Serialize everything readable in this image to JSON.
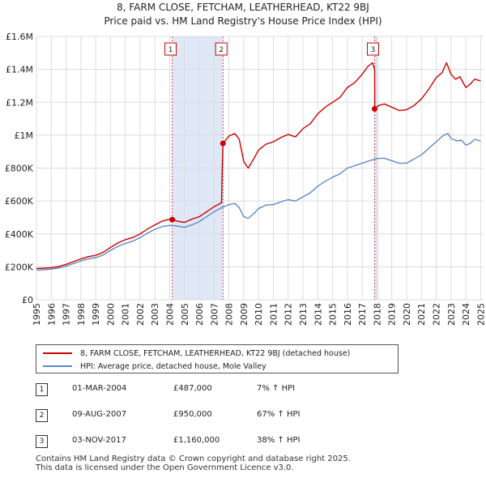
{
  "chart_data": {
    "type": "line",
    "title": "8, FARM CLOSE, FETCHAM, LEATHERHEAD, KT22 9BJ",
    "subtitle": "Price paid vs. HM Land Registry's House Price Index (HPI)",
    "xlim": [
      1995,
      2025.2
    ],
    "ylim": [
      0,
      1600000
    ],
    "x_ticks": [
      1995,
      1996,
      1997,
      1998,
      1999,
      2000,
      2001,
      2002,
      2003,
      2004,
      2005,
      2006,
      2007,
      2008,
      2009,
      2010,
      2011,
      2012,
      2013,
      2014,
      2015,
      2016,
      2017,
      2018,
      2019,
      2020,
      2021,
      2022,
      2023,
      2024,
      2025
    ],
    "y_ticks": [
      {
        "value": 0,
        "label": "£0"
      },
      {
        "value": 200000,
        "label": "£200K"
      },
      {
        "value": 400000,
        "label": "£400K"
      },
      {
        "value": 600000,
        "label": "£600K"
      },
      {
        "value": 800000,
        "label": "£800K"
      },
      {
        "value": 1000000,
        "label": "£1M"
      },
      {
        "value": 1200000,
        "label": "£1.2M"
      },
      {
        "value": 1400000,
        "label": "£1.4M"
      },
      {
        "value": 1600000,
        "label": "£1.6M"
      }
    ],
    "series": [
      {
        "name": "8, FARM CLOSE, FETCHAM, LEATHERHEAD, KT22 9BJ (detached house)",
        "color": "#cc0000",
        "points": [
          [
            1995.0,
            190000
          ],
          [
            1995.5,
            192000
          ],
          [
            1996.0,
            195000
          ],
          [
            1996.5,
            202000
          ],
          [
            1997.0,
            215000
          ],
          [
            1997.5,
            232000
          ],
          [
            1998.0,
            248000
          ],
          [
            1998.5,
            262000
          ],
          [
            1999.0,
            270000
          ],
          [
            1999.5,
            288000
          ],
          [
            2000.0,
            318000
          ],
          [
            2000.5,
            345000
          ],
          [
            2001.0,
            365000
          ],
          [
            2001.5,
            378000
          ],
          [
            2002.0,
            400000
          ],
          [
            2002.5,
            430000
          ],
          [
            2003.0,
            455000
          ],
          [
            2003.5,
            478000
          ],
          [
            2003.9,
            487000
          ],
          [
            2004.17,
            487000
          ],
          [
            2004.5,
            478000
          ],
          [
            2005.0,
            470000
          ],
          [
            2005.5,
            490000
          ],
          [
            2006.0,
            505000
          ],
          [
            2006.5,
            535000
          ],
          [
            2007.0,
            565000
          ],
          [
            2007.5,
            590000
          ],
          [
            2007.55,
            800000
          ],
          [
            2007.6,
            950000
          ],
          [
            2008.0,
            995000
          ],
          [
            2008.4,
            1010000
          ],
          [
            2008.7,
            975000
          ],
          [
            2009.0,
            840000
          ],
          [
            2009.3,
            800000
          ],
          [
            2009.7,
            860000
          ],
          [
            2010.0,
            910000
          ],
          [
            2010.5,
            945000
          ],
          [
            2011.0,
            960000
          ],
          [
            2011.5,
            985000
          ],
          [
            2012.0,
            1005000
          ],
          [
            2012.5,
            990000
          ],
          [
            2013.0,
            1040000
          ],
          [
            2013.5,
            1070000
          ],
          [
            2014.0,
            1130000
          ],
          [
            2014.5,
            1170000
          ],
          [
            2015.0,
            1200000
          ],
          [
            2015.5,
            1230000
          ],
          [
            2016.0,
            1290000
          ],
          [
            2016.5,
            1320000
          ],
          [
            2017.0,
            1370000
          ],
          [
            2017.4,
            1420000
          ],
          [
            2017.7,
            1440000
          ],
          [
            2017.84,
            1400000
          ],
          [
            2017.85,
            1160000
          ],
          [
            2018.1,
            1180000
          ],
          [
            2018.5,
            1190000
          ],
          [
            2019.0,
            1170000
          ],
          [
            2019.5,
            1150000
          ],
          [
            2020.0,
            1155000
          ],
          [
            2020.5,
            1180000
          ],
          [
            2021.0,
            1220000
          ],
          [
            2021.5,
            1280000
          ],
          [
            2022.0,
            1350000
          ],
          [
            2022.4,
            1380000
          ],
          [
            2022.7,
            1440000
          ],
          [
            2023.0,
            1370000
          ],
          [
            2023.3,
            1340000
          ],
          [
            2023.6,
            1355000
          ],
          [
            2024.0,
            1290000
          ],
          [
            2024.3,
            1310000
          ],
          [
            2024.6,
            1340000
          ],
          [
            2025.0,
            1330000
          ]
        ]
      },
      {
        "name": "HPI: Average price, detached house, Mole Valley",
        "color": "#5b8ac7",
        "points": [
          [
            1995.0,
            180000
          ],
          [
            1995.5,
            182000
          ],
          [
            1996.0,
            186000
          ],
          [
            1996.5,
            193000
          ],
          [
            1997.0,
            205000
          ],
          [
            1997.5,
            220000
          ],
          [
            1998.0,
            236000
          ],
          [
            1998.5,
            248000
          ],
          [
            1999.0,
            256000
          ],
          [
            1999.5,
            272000
          ],
          [
            2000.0,
            300000
          ],
          [
            2000.5,
            325000
          ],
          [
            2001.0,
            342000
          ],
          [
            2001.5,
            356000
          ],
          [
            2002.0,
            378000
          ],
          [
            2002.5,
            405000
          ],
          [
            2003.0,
            428000
          ],
          [
            2003.5,
            445000
          ],
          [
            2004.0,
            452000
          ],
          [
            2004.5,
            448000
          ],
          [
            2005.0,
            440000
          ],
          [
            2005.5,
            455000
          ],
          [
            2006.0,
            475000
          ],
          [
            2006.5,
            505000
          ],
          [
            2007.0,
            535000
          ],
          [
            2007.5,
            560000
          ],
          [
            2008.0,
            578000
          ],
          [
            2008.4,
            585000
          ],
          [
            2008.7,
            560000
          ],
          [
            2009.0,
            505000
          ],
          [
            2009.3,
            495000
          ],
          [
            2009.7,
            525000
          ],
          [
            2010.0,
            555000
          ],
          [
            2010.5,
            575000
          ],
          [
            2011.0,
            578000
          ],
          [
            2011.5,
            595000
          ],
          [
            2012.0,
            608000
          ],
          [
            2012.5,
            600000
          ],
          [
            2013.0,
            625000
          ],
          [
            2013.5,
            650000
          ],
          [
            2014.0,
            690000
          ],
          [
            2014.5,
            720000
          ],
          [
            2015.0,
            745000
          ],
          [
            2015.5,
            765000
          ],
          [
            2016.0,
            800000
          ],
          [
            2016.5,
            815000
          ],
          [
            2017.0,
            830000
          ],
          [
            2017.5,
            845000
          ],
          [
            2018.0,
            858000
          ],
          [
            2018.5,
            860000
          ],
          [
            2019.0,
            845000
          ],
          [
            2019.5,
            830000
          ],
          [
            2020.0,
            830000
          ],
          [
            2020.5,
            855000
          ],
          [
            2021.0,
            880000
          ],
          [
            2021.5,
            920000
          ],
          [
            2022.0,
            960000
          ],
          [
            2022.5,
            1000000
          ],
          [
            2022.8,
            1010000
          ],
          [
            2023.0,
            980000
          ],
          [
            2023.4,
            965000
          ],
          [
            2023.7,
            970000
          ],
          [
            2024.0,
            940000
          ],
          [
            2024.3,
            950000
          ],
          [
            2024.6,
            975000
          ],
          [
            2025.0,
            965000
          ]
        ]
      }
    ],
    "sales": [
      {
        "id": "1",
        "x": 2004.17,
        "price": 487000
      },
      {
        "id": "2",
        "x": 2007.6,
        "price": 950000
      },
      {
        "id": "3",
        "x": 2017.84,
        "price": 1160000
      }
    ],
    "shaded_spans": [
      [
        2004.17,
        2007.6
      ],
      [
        2017.84,
        2018.1
      ]
    ]
  },
  "legend": {
    "property_label": "8, FARM CLOSE, FETCHAM, LEATHERHEAD, KT22 9BJ (detached house)",
    "hpi_label": "HPI: Average price, detached house, Mole Valley",
    "property_color": "#cc0000",
    "hpi_color": "#5b8ac7"
  },
  "sales_table": [
    {
      "num": "1",
      "date": "01-MAR-2004",
      "price": "£487,000",
      "hpi": "7% ↑ HPI"
    },
    {
      "num": "2",
      "date": "09-AUG-2007",
      "price": "£950,000",
      "hpi": "67% ↑ HPI"
    },
    {
      "num": "3",
      "date": "03-NOV-2017",
      "price": "£1,160,000",
      "hpi": "38% ↑ HPI"
    }
  ],
  "footer": {
    "line1": "Contains HM Land Registry data © Crown copyright and database right 2025.",
    "line2": "This data is licensed under the Open Government Licence v3.0."
  }
}
